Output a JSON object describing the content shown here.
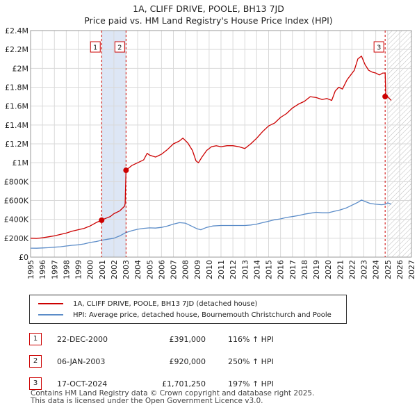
{
  "header": {
    "title_line1": "1A, CLIFF DRIVE, POOLE, BH13 7JD",
    "title_line2": "Price paid vs. HM Land Registry's House Price Index (HPI)"
  },
  "chart_data": {
    "type": "line",
    "title": "1A, CLIFF DRIVE, POOLE, BH13 7JD — Price paid vs. HM Land Registry's House Price Index (HPI)",
    "xlabel": "",
    "ylabel": "",
    "xlim": [
      1995,
      2027
    ],
    "ylim": [
      0,
      2400000
    ],
    "x_ticks": [
      1995,
      1996,
      1997,
      1998,
      1999,
      2000,
      2001,
      2002,
      2003,
      2004,
      2005,
      2006,
      2007,
      2008,
      2009,
      2010,
      2011,
      2012,
      2013,
      2014,
      2015,
      2016,
      2017,
      2018,
      2019,
      2020,
      2021,
      2022,
      2023,
      2024,
      2025,
      2026,
      2027
    ],
    "y_ticks": [
      0,
      200000,
      400000,
      600000,
      800000,
      1000000,
      1200000,
      1400000,
      1600000,
      1800000,
      2000000,
      2200000,
      2400000
    ],
    "y_tick_labels": [
      "£0",
      "£200K",
      "£400K",
      "£600K",
      "£800K",
      "£1M",
      "£1.2M",
      "£1.4M",
      "£1.6M",
      "£1.8M",
      "£2M",
      "£2.2M",
      "£2.4M"
    ],
    "grid": true,
    "colors": {
      "property": "#cc0000",
      "hpi": "#5b8cc8",
      "shade": "#dde6f5",
      "marker_line": "#cc0000"
    },
    "shaded_region": [
      2000.97,
      2003.02
    ],
    "hatched_future_from": 2025.0,
    "series": [
      {
        "name": "1A, CLIFF DRIVE, POOLE, BH13 7JD (detached house)",
        "color": "#cc0000",
        "x": [
          1995,
          1995.5,
          1996,
          1996.5,
          1997,
          1997.5,
          1998,
          1998.5,
          1999,
          1999.5,
          2000,
          2000.5,
          2000.97,
          2001.3,
          2001.7,
          2002,
          2002.5,
          2002.9,
          2002.95,
          2003.02,
          2003.5,
          2004,
          2004.5,
          2004.8,
          2005,
          2005.5,
          2006,
          2006.5,
          2007,
          2007.5,
          2007.8,
          2008.2,
          2008.6,
          2008.9,
          2009.1,
          2009.4,
          2009.8,
          2010.2,
          2010.6,
          2011,
          2011.5,
          2012,
          2012.5,
          2013,
          2013.5,
          2014,
          2014.5,
          2015,
          2015.5,
          2016,
          2016.5,
          2017,
          2017.5,
          2018,
          2018.5,
          2019,
          2019.5,
          2019.9,
          2020.3,
          2020.6,
          2020.9,
          2021.2,
          2021.6,
          2021.9,
          2022.2,
          2022.5,
          2022.8,
          2023.1,
          2023.4,
          2023.7,
          2024.0,
          2024.3,
          2024.6,
          2024.79,
          2024.85,
          2025.0,
          2025.15,
          2025.3
        ],
        "y": [
          200000,
          198000,
          205000,
          215000,
          225000,
          240000,
          255000,
          275000,
          290000,
          305000,
          330000,
          365000,
          391000,
          410000,
          430000,
          460000,
          490000,
          540000,
          570000,
          920000,
          970000,
          1000000,
          1030000,
          1100000,
          1080000,
          1060000,
          1090000,
          1140000,
          1200000,
          1230000,
          1260000,
          1210000,
          1130000,
          1020000,
          1000000,
          1060000,
          1130000,
          1170000,
          1180000,
          1170000,
          1180000,
          1180000,
          1170000,
          1150000,
          1200000,
          1260000,
          1330000,
          1390000,
          1420000,
          1480000,
          1520000,
          1580000,
          1620000,
          1650000,
          1700000,
          1690000,
          1670000,
          1680000,
          1660000,
          1760000,
          1800000,
          1780000,
          1880000,
          1930000,
          1980000,
          2100000,
          2130000,
          2040000,
          1980000,
          1960000,
          1950000,
          1930000,
          1950000,
          1950000,
          1701250,
          1701250,
          1680000,
          1660000
        ]
      },
      {
        "name": "HPI: Average price, detached house, Bournemouth Christchurch and Poole",
        "color": "#5b8cc8",
        "x": [
          1995,
          1995.5,
          1996,
          1996.5,
          1997,
          1997.5,
          1998,
          1998.5,
          1999,
          1999.5,
          2000,
          2000.5,
          2001,
          2001.5,
          2002,
          2002.5,
          2003,
          2003.5,
          2004,
          2004.5,
          2005,
          2005.5,
          2006,
          2006.5,
          2007,
          2007.5,
          2008,
          2008.5,
          2009,
          2009.3,
          2009.8,
          2010.3,
          2011,
          2011.5,
          2012,
          2012.5,
          2013,
          2013.5,
          2014,
          2014.5,
          2015,
          2015.5,
          2016,
          2016.5,
          2017,
          2017.5,
          2018,
          2018.5,
          2019,
          2019.5,
          2020,
          2020.5,
          2021,
          2021.5,
          2022,
          2022.5,
          2022.8,
          2023.1,
          2023.5,
          2024,
          2024.5,
          2024.8,
          2025,
          2025.3
        ],
        "y": [
          95000,
          94000,
          97000,
          100000,
          105000,
          110000,
          118000,
          125000,
          130000,
          140000,
          155000,
          165000,
          180000,
          190000,
          200000,
          225000,
          260000,
          280000,
          295000,
          305000,
          310000,
          308000,
          315000,
          330000,
          350000,
          365000,
          360000,
          330000,
          300000,
          290000,
          315000,
          330000,
          335000,
          335000,
          335000,
          335000,
          335000,
          340000,
          350000,
          365000,
          380000,
          395000,
          405000,
          420000,
          430000,
          440000,
          455000,
          465000,
          475000,
          470000,
          470000,
          485000,
          500000,
          520000,
          550000,
          580000,
          605000,
          590000,
          570000,
          560000,
          555000,
          560000,
          575000,
          560000
        ]
      }
    ],
    "markers": [
      {
        "label": "1",
        "x": 2000.97,
        "y": 391000
      },
      {
        "label": "2",
        "x": 2003.02,
        "y": 920000
      },
      {
        "label": "3",
        "x": 2024.79,
        "y": 1701250
      }
    ],
    "legend_position": "bottom"
  },
  "legend": {
    "entries": [
      {
        "label": "1A, CLIFF DRIVE, POOLE, BH13 7JD (detached house)",
        "color": "#cc0000"
      },
      {
        "label": "HPI: Average price, detached house, Bournemouth Christchurch and Poole",
        "color": "#5b8cc8"
      }
    ]
  },
  "sales": [
    {
      "num": "1",
      "date": "22-DEC-2000",
      "price": "£391,000",
      "hpi": "116% ↑ HPI"
    },
    {
      "num": "2",
      "date": "06-JAN-2003",
      "price": "£920,000",
      "hpi": "250% ↑ HPI"
    },
    {
      "num": "3",
      "date": "17-OCT-2024",
      "price": "£1,701,250",
      "hpi": "197% ↑ HPI"
    }
  ],
  "footer": {
    "line1": "Contains HM Land Registry data © Crown copyright and database right 2025.",
    "line2": "This data is licensed under the Open Government Licence v3.0."
  }
}
